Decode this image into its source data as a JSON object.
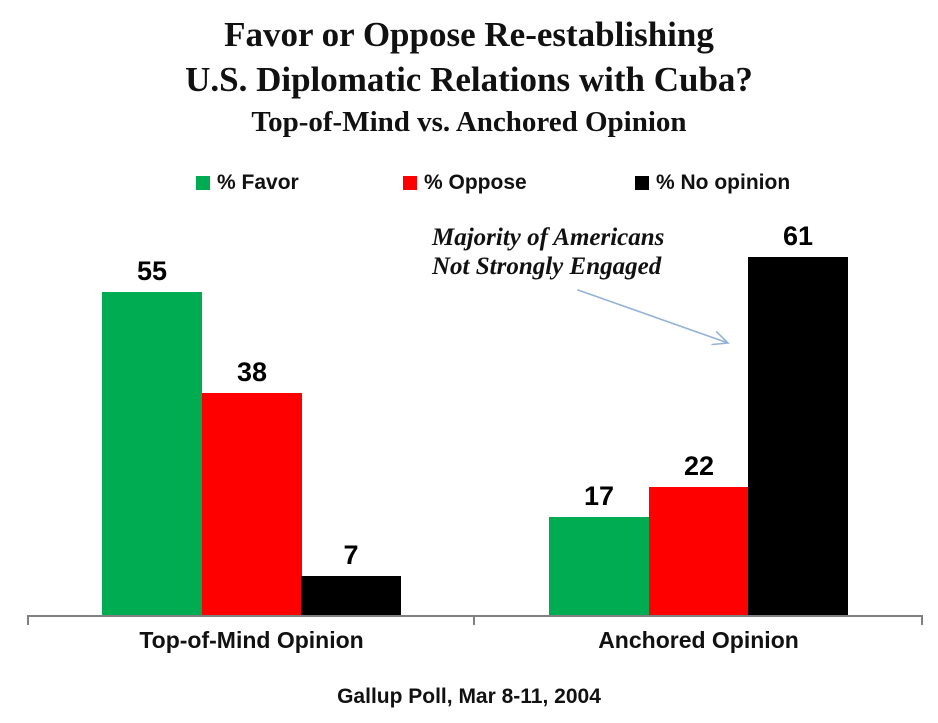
{
  "title": {
    "line1": "Favor or Oppose Re-establishing",
    "line2": "U.S. Diplomatic Relations with Cuba?",
    "line3": "Top-of-Mind vs. Anchored Opinion"
  },
  "legend": [
    {
      "label": "% Favor",
      "color": "#00AC52"
    },
    {
      "label": "% Oppose",
      "color": "#FF0000"
    },
    {
      "label": "% No opinion",
      "color": "#000000"
    }
  ],
  "annotation": {
    "line1": "Majority of Americans",
    "line2": "Not Strongly Engaged"
  },
  "source": "Gallup Poll, Mar 8-11, 2004",
  "colors": {
    "favor": "#00AC52",
    "oppose": "#FF0000",
    "no_opinion": "#000000",
    "axis": "#808080",
    "arrow": "#95B3D7"
  },
  "chart_data": {
    "type": "bar",
    "title": "Favor or Oppose Re-establishing U.S. Diplomatic Relations with Cuba?",
    "subtitle": "Top-of-Mind vs. Anchored Opinion",
    "categories": [
      "Top-of-Mind Opinion",
      "Anchored Opinion"
    ],
    "series": [
      {
        "name": "% Favor",
        "color": "#00AC52",
        "values": [
          55,
          17
        ]
      },
      {
        "name": "% Oppose",
        "color": "#FF0000",
        "values": [
          38,
          22
        ]
      },
      {
        "name": "% No opinion",
        "color": "#000000",
        "values": [
          7,
          61
        ]
      }
    ],
    "ylim": [
      0,
      65
    ],
    "grid": false,
    "legend_position": "top",
    "value_labels": true,
    "annotation": "Majority of Americans Not Strongly Engaged",
    "annotation_target": "% No opinion / Anchored Opinion bar (61)",
    "source": "Gallup Poll, Mar 8-11, 2004"
  }
}
